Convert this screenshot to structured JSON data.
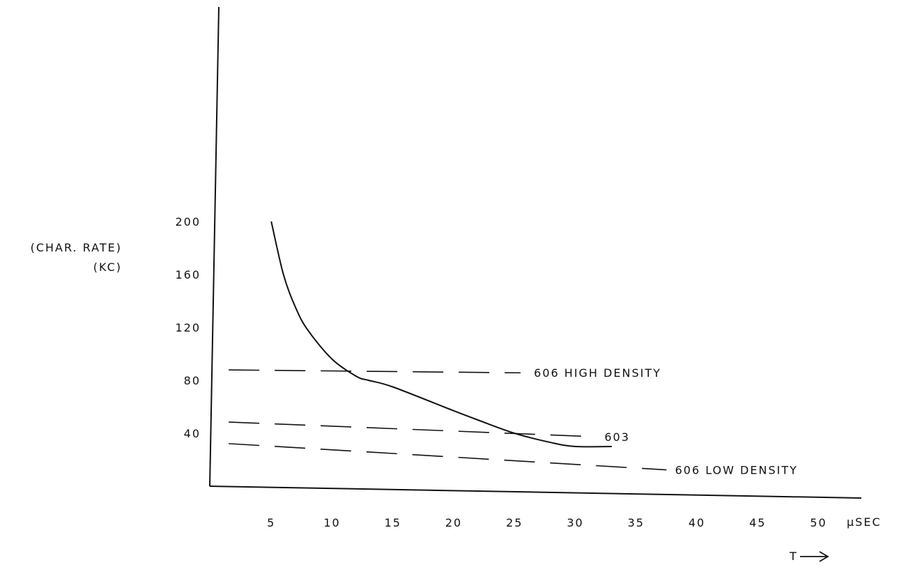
{
  "chart_data": {
    "type": "line",
    "ylabel_lines": [
      "(CHAR. RATE)",
      "(KC)"
    ],
    "x_unit_label": "μSEC",
    "x_axis_note": "T",
    "x_ticks": [
      5,
      10,
      15,
      20,
      25,
      30,
      35,
      40,
      45,
      50
    ],
    "y_ticks": [
      40,
      80,
      120,
      160,
      200
    ],
    "xlim": [
      0,
      55
    ],
    "ylim": [
      0,
      200
    ],
    "grid": false,
    "curve": {
      "x": [
        5,
        6,
        7,
        8,
        10,
        12,
        13,
        15,
        20,
        22,
        25,
        28,
        30,
        33
      ],
      "y": [
        200,
        160,
        135,
        118,
        96,
        83,
        80,
        75,
        57,
        50,
        40,
        33,
        30,
        30
      ]
    },
    "reference_lines": [
      {
        "label": "606 HIGH DENSITY",
        "y": 88
      },
      {
        "label": "603",
        "y": 49
      },
      {
        "label": "606 LOW DENSITY",
        "y": 33
      }
    ]
  }
}
